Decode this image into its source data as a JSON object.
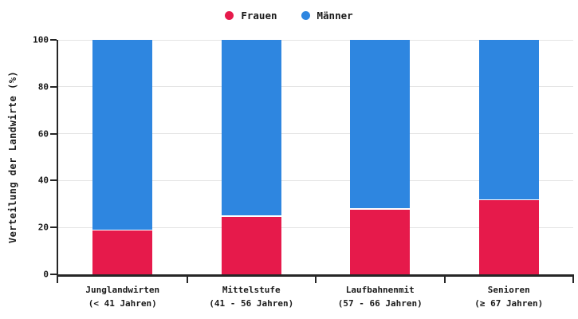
{
  "style": {
    "axis_color": "#262626",
    "grid_color": "#e4e4e4",
    "text_color": "#1a1a1a",
    "background": "#ffffff"
  },
  "chart_data": {
    "type": "bar",
    "stacked": true,
    "title": "",
    "xlabel": "",
    "ylabel": "Verteilung der Landwirte (%)",
    "ylim": [
      0,
      100
    ],
    "yticks": [
      0,
      20,
      40,
      60,
      80,
      100
    ],
    "grid": true,
    "legend_position": "top-center",
    "categories": [
      {
        "label": "Junglandwirten",
        "sub": "(< 41 Jahren)"
      },
      {
        "label": "Mittelstufe",
        "sub": "(41 - 56 Jahren)"
      },
      {
        "label": "Laufbahnenmit",
        "sub": "(57 - 66 Jahren)"
      },
      {
        "label": "Senioren",
        "sub": "(≥ 67 Jahren)"
      }
    ],
    "series": [
      {
        "name": "Frauen",
        "color": "#e61a4b",
        "values": [
          18.6,
          24.6,
          27.6,
          31.5
        ]
      },
      {
        "name": "Männer",
        "color": "#2e86e0",
        "values": [
          81.4,
          75.4,
          72.4,
          68.5
        ]
      }
    ]
  }
}
